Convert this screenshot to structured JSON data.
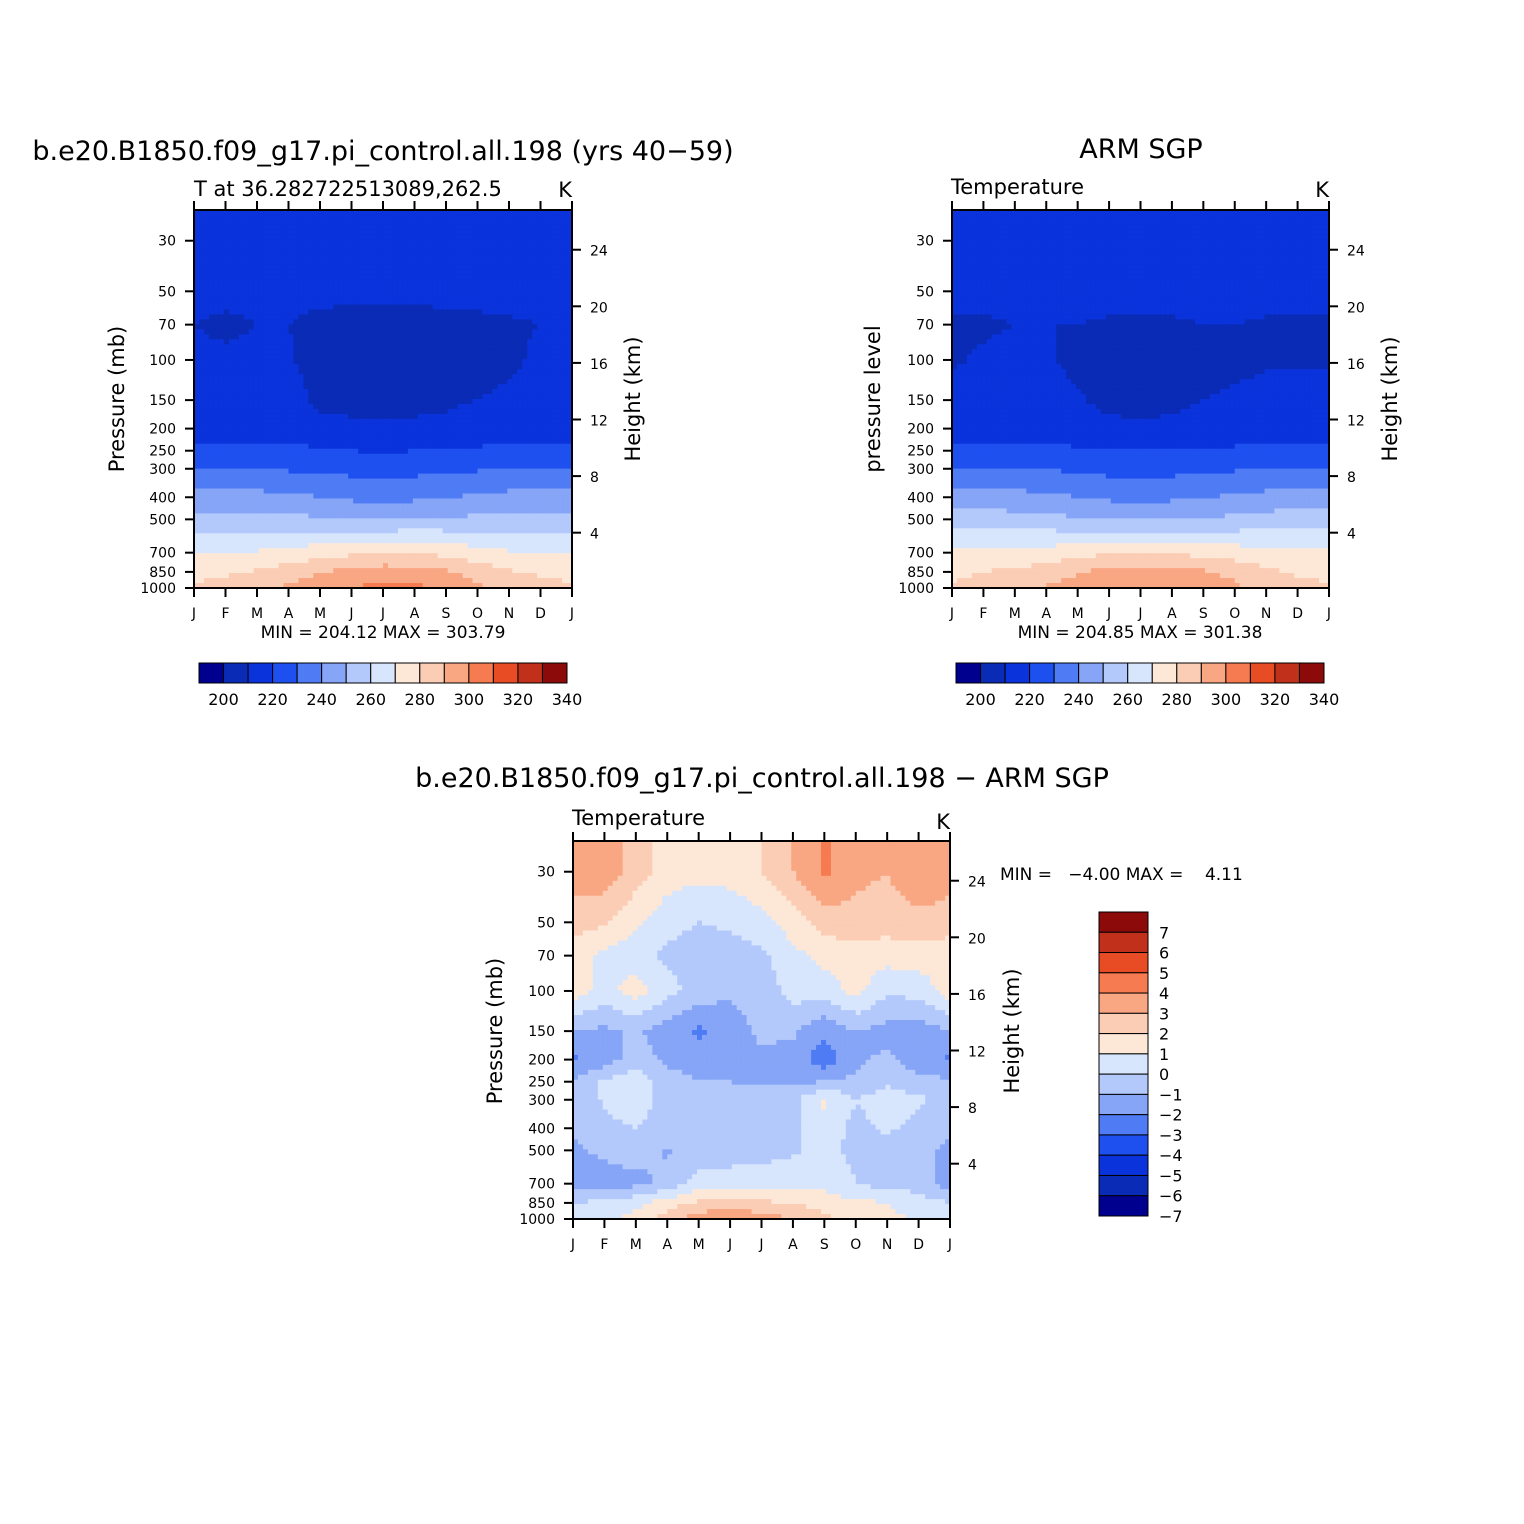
{
  "colors": {
    "temperature_levels": [
      "#00008f",
      "#0a2bb5",
      "#0a33dc",
      "#1e50f0",
      "#4f7cf5",
      "#86a5f7",
      "#b3c9fb",
      "#d7e6fc",
      "#fde8d8",
      "#fbcdb4",
      "#f9a683",
      "#f67b50",
      "#e84c25",
      "#c0301a",
      "#8c0a0a"
    ],
    "difference_levels": [
      "#00008f",
      "#0a2bb5",
      "#0a33dc",
      "#1e50f0",
      "#4f7cf5",
      "#86a5f7",
      "#b3c9fb",
      "#d7e6fc",
      "#fde8d8",
      "#fbcdb4",
      "#f9a683",
      "#f67b50",
      "#e84c25",
      "#c0301a",
      "#8c0a0a"
    ]
  },
  "panels": {
    "model": {
      "title": "b.e20.B1850.f09_g17.pi_control.all.198 (yrs 40−59)",
      "subtitle_left": "T at 36.282722513089,262.5",
      "subtitle_right": "K",
      "ylabel_left": "Pressure (mb)",
      "ylabel_right": "Height (km)",
      "stats": "MIN = 204.12 MAX = 303.79"
    },
    "obs": {
      "title": "ARM SGP",
      "subtitle_left": "Temperature",
      "subtitle_right": "K",
      "ylabel_left": "pressure level",
      "ylabel_right": "Height (km)",
      "stats": "MIN = 204.85 MAX = 301.38"
    },
    "diff": {
      "title": "b.e20.B1850.f09_g17.pi_control.all.198 − ARM SGP",
      "subtitle_left": "Temperature",
      "subtitle_right": "K",
      "ylabel_left": "Pressure (mb)",
      "ylabel_right": "Height (km)",
      "stats": "MIN =   −4.00 MAX =    4.11"
    }
  },
  "chart_data": [
    {
      "type": "heatmap",
      "title": "b.e20.B1850.f09_g17.pi_control.all.198 (yrs 40−59)",
      "subtitle": "T at 36.282722513089,262.5",
      "units": "K",
      "x": [
        "J",
        "F",
        "M",
        "A",
        "M",
        "J",
        "J",
        "A",
        "S",
        "O",
        "N",
        "D",
        "J"
      ],
      "y_pressure": [
        30,
        50,
        70,
        100,
        150,
        200,
        250,
        300,
        400,
        500,
        700,
        850,
        1000
      ],
      "y_height_km": [
        4,
        8,
        12,
        16,
        20,
        24
      ],
      "ylabel": "Pressure (mb)",
      "ylabel_right": "Height (km)",
      "ylog": true,
      "contour_levels": [
        200,
        210,
        220,
        230,
        240,
        250,
        260,
        270,
        280,
        290,
        300,
        310,
        320,
        330,
        340
      ],
      "colorbar_labels": [
        "200",
        "220",
        "240",
        "260",
        "280",
        "300",
        "320",
        "340"
      ],
      "min": 204.12,
      "max": 303.79,
      "z": [
        [
          217,
          217,
          217,
          217,
          216,
          215,
          214,
          215,
          216,
          217,
          217,
          217,
          217
        ],
        [
          214,
          213,
          213,
          213,
          213,
          213,
          213,
          213,
          213,
          213,
          213,
          213,
          214
        ],
        [
          210,
          208,
          210,
          210,
          207,
          206,
          206,
          206,
          207,
          208,
          209,
          210,
          210
        ],
        [
          212,
          212,
          212,
          211,
          206,
          205,
          205,
          205,
          205,
          206,
          208,
          212,
          212
        ],
        [
          215,
          215,
          215,
          214,
          208,
          207,
          207,
          207,
          208,
          210,
          212,
          215,
          215
        ],
        [
          217,
          217,
          217,
          217,
          213,
          212,
          212,
          212,
          213,
          215,
          216,
          217,
          217
        ],
        [
          222,
          222,
          222,
          222,
          221,
          220,
          219,
          220,
          221,
          221,
          222,
          222,
          222
        ],
        [
          230,
          230,
          230,
          229,
          228,
          227,
          226,
          227,
          228,
          229,
          230,
          230,
          230
        ],
        [
          243,
          243,
          243,
          242,
          240,
          238,
          238,
          238,
          240,
          241,
          243,
          243,
          243
        ],
        [
          254,
          254,
          254,
          253,
          251,
          250,
          249,
          250,
          251,
          252,
          254,
          254,
          254
        ],
        [
          270,
          270,
          271,
          273,
          276,
          278,
          280,
          280,
          277,
          274,
          271,
          270,
          270
        ],
        [
          278,
          279,
          281,
          285,
          289,
          293,
          295,
          294,
          291,
          286,
          281,
          279,
          278
        ],
        [
          281,
          283,
          287,
          292,
          296,
          300,
          303,
          302,
          298,
          292,
          286,
          282,
          281
        ]
      ]
    },
    {
      "type": "heatmap",
      "title": "ARM SGP",
      "subtitle": "Temperature",
      "units": "K",
      "x": [
        "J",
        "F",
        "M",
        "A",
        "M",
        "J",
        "J",
        "A",
        "S",
        "O",
        "N",
        "D",
        "J"
      ],
      "y_pressure": [
        30,
        50,
        70,
        100,
        150,
        200,
        250,
        300,
        400,
        500,
        700,
        850,
        1000
      ],
      "y_height_km": [
        4,
        8,
        12,
        16,
        20,
        24
      ],
      "ylabel": "pressure level",
      "ylabel_right": "Height (km)",
      "ylog": true,
      "contour_levels": [
        200,
        210,
        220,
        230,
        240,
        250,
        260,
        270,
        280,
        290,
        300,
        310,
        320,
        330,
        340
      ],
      "colorbar_labels": [
        "200",
        "220",
        "240",
        "260",
        "280",
        "300",
        "320",
        "340"
      ],
      "min": 204.85,
      "max": 301.38,
      "z": [
        [
          215,
          215,
          215,
          215,
          216,
          217,
          218,
          217,
          216,
          215,
          215,
          215,
          215
        ],
        [
          212,
          212,
          213,
          213,
          213,
          213,
          213,
          213,
          213,
          213,
          213,
          212,
          212
        ],
        [
          209,
          209,
          210,
          210,
          210,
          209,
          209,
          209,
          210,
          210,
          209,
          209,
          209
        ],
        [
          209,
          211,
          212,
          211,
          208,
          206,
          205,
          205,
          206,
          207,
          209,
          209,
          209
        ],
        [
          214,
          214,
          214,
          213,
          211,
          207,
          206,
          207,
          210,
          212,
          213,
          214,
          214
        ],
        [
          217,
          217,
          217,
          217,
          215,
          213,
          212,
          213,
          215,
          216,
          217,
          217,
          217
        ],
        [
          222,
          222,
          222,
          222,
          221,
          220,
          220,
          220,
          221,
          221,
          222,
          222,
          222
        ],
        [
          231,
          231,
          231,
          230,
          228,
          227,
          226,
          227,
          228,
          229,
          230,
          231,
          231
        ],
        [
          243,
          243,
          243,
          242,
          240,
          238,
          237,
          238,
          240,
          241,
          243,
          243,
          243
        ],
        [
          255,
          255,
          254,
          253,
          251,
          250,
          249,
          250,
          251,
          252,
          254,
          255,
          255
        ],
        [
          271,
          271,
          272,
          274,
          276,
          279,
          280,
          279,
          277,
          275,
          273,
          271,
          271
        ],
        [
          278,
          280,
          282,
          285,
          289,
          293,
          294,
          294,
          291,
          287,
          282,
          279,
          278
        ],
        [
          281,
          283,
          287,
          291,
          295,
          299,
          301,
          300,
          297,
          292,
          286,
          282,
          281
        ]
      ]
    },
    {
      "type": "heatmap",
      "title": "b.e20.B1850.f09_g17.pi_control.all.198 − ARM SGP",
      "subtitle": "Temperature",
      "units": "K",
      "x": [
        "J",
        "F",
        "M",
        "A",
        "M",
        "J",
        "J",
        "A",
        "S",
        "O",
        "N",
        "D",
        "J"
      ],
      "y_pressure": [
        30,
        50,
        70,
        100,
        150,
        200,
        250,
        300,
        400,
        500,
        700,
        850,
        1000
      ],
      "y_height_km": [
        4,
        8,
        12,
        16,
        20,
        24
      ],
      "ylabel": "Pressure (mb)",
      "ylabel_right": "Height (km)",
      "ylog": true,
      "contour_levels": [
        -7,
        -6,
        -5,
        -4,
        -3,
        -2,
        -1,
        0,
        1,
        2,
        3,
        4,
        5,
        6,
        7
      ],
      "colorbar_labels": [
        "7",
        "6",
        "5",
        "4",
        "3",
        "2",
        "1",
        "0",
        "−1",
        "−2",
        "−3",
        "−4",
        "−5",
        "−6",
        "−7"
      ],
      "min": -4.0,
      "max": 4.11,
      "z": [
        [
          2.5,
          2.6,
          1.5,
          0.5,
          0.3,
          0.4,
          1.0,
          2.0,
          3.2,
          2.3,
          2.0,
          2.8,
          2.5
        ],
        [
          1.5,
          1.2,
          0.2,
          -0.6,
          -1.0,
          -0.8,
          -0.4,
          0.5,
          1.5,
          1.6,
          1.5,
          1.7,
          1.5
        ],
        [
          0.4,
          -0.3,
          -0.6,
          -1.2,
          -1.6,
          -1.5,
          -1.2,
          -0.3,
          0.3,
          0.5,
          0.4,
          0.5,
          0.4
        ],
        [
          0.5,
          -0.4,
          0.5,
          -0.6,
          -1.5,
          -1.8,
          -1.6,
          -0.6,
          -0.5,
          0.3,
          -0.8,
          -0.6,
          0.5
        ],
        [
          -2.0,
          -2.2,
          -1.8,
          -2.6,
          -3.2,
          -2.5,
          -1.8,
          -1.8,
          -2.8,
          -2.0,
          -2.4,
          -2.6,
          -2.0
        ],
        [
          -3.2,
          -2.5,
          -1.6,
          -2.2,
          -2.4,
          -2.3,
          -2.2,
          -2.4,
          -3.6,
          -2.2,
          -1.8,
          -2.6,
          -3.2
        ],
        [
          -1.8,
          -0.8,
          -0.3,
          -1.6,
          -2.0,
          -2.0,
          -2.1,
          -2.3,
          -2.0,
          -1.8,
          -1.2,
          -1.6,
          -1.8
        ],
        [
          -1.5,
          -0.9,
          -0.5,
          -1.4,
          -1.5,
          -1.6,
          -1.6,
          -1.3,
          0.2,
          -1.0,
          -0.5,
          -0.8,
          -1.5
        ],
        [
          -1.8,
          -1.2,
          -1.0,
          -1.5,
          -1.6,
          -1.6,
          -1.4,
          -1.2,
          -0.4,
          -1.3,
          -0.8,
          -1.3,
          -1.8
        ],
        [
          -2.2,
          -1.8,
          -1.6,
          -2.1,
          -1.6,
          -1.4,
          -1.2,
          -1.1,
          -0.8,
          -1.2,
          -1.5,
          -1.7,
          -2.2
        ],
        [
          -2.5,
          -2.4,
          -2.3,
          -1.8,
          -0.5,
          -0.6,
          -0.7,
          -0.6,
          -0.4,
          -1.0,
          -1.4,
          -1.5,
          -2.5
        ],
        [
          -1.0,
          -0.8,
          -0.3,
          0.5,
          1.2,
          1.5,
          1.2,
          1.0,
          0.6,
          0.2,
          0.0,
          -0.5,
          -1.0
        ],
        [
          -0.5,
          -0.3,
          0.3,
          1.5,
          2.5,
          3.0,
          2.5,
          2.0,
          1.2,
          0.6,
          0.3,
          -0.2,
          -0.5
        ]
      ]
    }
  ]
}
